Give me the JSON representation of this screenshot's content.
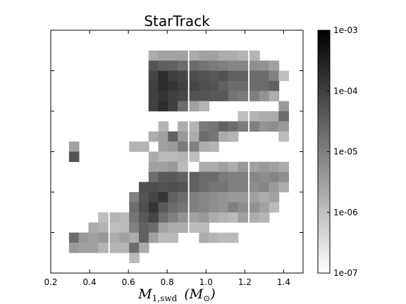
{
  "chart_data": {
    "type": "heatmap",
    "title": "StarTrack",
    "xlabel": "M1,swd (M☉)",
    "xlabel_parts": {
      "sym": "M",
      "sub": "1,swd",
      "unit_open": "(M",
      "unit_sub": "⊙",
      "unit_close": ")"
    },
    "ylabel": "",
    "xlim": [
      0.2,
      1.5
    ],
    "ylim": [
      0,
      6
    ],
    "x_ticks": [
      "0.2",
      "0.4",
      "0.6",
      "0.8",
      "1.0",
      "1.2",
      "1.4"
    ],
    "x_tick_values": [
      0.2,
      0.4,
      0.6,
      0.8,
      1.0,
      1.2,
      1.4
    ],
    "y_tick_values": [
      1,
      2,
      3,
      4,
      5
    ],
    "colorbar": {
      "scale": "log",
      "vmin": 1e-07,
      "vmax": 0.001,
      "ticks": [
        "1e-03",
        "1e-04",
        "1e-05",
        "1e-06",
        "1e-07"
      ],
      "tick_values": [
        0.001,
        0.0001,
        1e-05,
        1e-06,
        1e-07
      ],
      "colormap": "gray_r"
    },
    "bin_width": 0.052,
    "bin_height": 0.25,
    "bins": [
      [
        0.73,
        5.375,
        2e-06
      ],
      [
        0.78,
        5.375,
        3e-06
      ],
      [
        0.83,
        5.375,
        3e-06
      ],
      [
        0.88,
        5.375,
        3e-06
      ],
      [
        0.94,
        5.375,
        2e-06
      ],
      [
        0.99,
        5.375,
        3e-06
      ],
      [
        1.04,
        5.375,
        3e-06
      ],
      [
        1.09,
        5.375,
        2e-06
      ],
      [
        1.14,
        5.375,
        2e-06
      ],
      [
        1.19,
        5.375,
        1.5e-06
      ],
      [
        1.25,
        5.375,
        1.5e-06
      ],
      [
        0.73,
        5.125,
        5e-05
      ],
      [
        0.78,
        5.125,
        3e-05
      ],
      [
        0.83,
        5.125,
        3e-05
      ],
      [
        0.88,
        5.125,
        2e-05
      ],
      [
        0.94,
        5.125,
        2e-05
      ],
      [
        0.99,
        5.125,
        1.5e-05
      ],
      [
        1.04,
        5.125,
        1.2e-05
      ],
      [
        1.09,
        5.125,
        1e-05
      ],
      [
        1.14,
        5.125,
        8e-06
      ],
      [
        1.19,
        5.125,
        8e-06
      ],
      [
        1.25,
        5.125,
        6e-06
      ],
      [
        1.3,
        5.125,
        5e-06
      ],
      [
        1.35,
        5.125,
        3e-06
      ],
      [
        0.73,
        4.875,
        8e-05
      ],
      [
        0.78,
        4.875,
        0.0002
      ],
      [
        0.83,
        4.875,
        0.0001
      ],
      [
        0.88,
        4.875,
        8e-05
      ],
      [
        0.94,
        4.875,
        6e-05
      ],
      [
        0.99,
        4.875,
        5e-05
      ],
      [
        1.04,
        4.875,
        4e-05
      ],
      [
        1.09,
        4.875,
        5e-05
      ],
      [
        1.14,
        4.875,
        3e-05
      ],
      [
        1.19,
        4.875,
        3e-05
      ],
      [
        1.25,
        4.875,
        2e-05
      ],
      [
        1.3,
        4.875,
        2e-05
      ],
      [
        1.35,
        4.875,
        1e-05
      ],
      [
        1.4,
        4.875,
        1e-06
      ],
      [
        0.73,
        4.625,
        0.0001
      ],
      [
        0.78,
        4.625,
        0.0002
      ],
      [
        0.83,
        4.625,
        0.00015
      ],
      [
        0.88,
        4.625,
        0.0001
      ],
      [
        0.94,
        4.625,
        8e-05
      ],
      [
        0.99,
        4.625,
        6e-05
      ],
      [
        1.04,
        4.625,
        5e-05
      ],
      [
        1.09,
        4.625,
        3e-05
      ],
      [
        1.14,
        4.625,
        2e-05
      ],
      [
        1.19,
        4.625,
        2e-05
      ],
      [
        1.25,
        4.625,
        2e-05
      ],
      [
        1.3,
        4.625,
        2e-05
      ],
      [
        1.35,
        4.625,
        3e-05
      ],
      [
        0.73,
        4.375,
        0.0001
      ],
      [
        0.78,
        4.375,
        0.00015
      ],
      [
        0.83,
        4.375,
        0.0001
      ],
      [
        0.88,
        4.375,
        8e-05
      ],
      [
        0.94,
        4.375,
        5e-05
      ],
      [
        0.99,
        4.375,
        5e-05
      ],
      [
        1.04,
        4.375,
        4e-05
      ],
      [
        1.09,
        4.375,
        4e-05
      ],
      [
        1.14,
        4.375,
        1.5e-05
      ],
      [
        1.19,
        4.375,
        1.2e-05
      ],
      [
        1.25,
        4.375,
        1e-05
      ],
      [
        1.3,
        4.375,
        5e-06
      ],
      [
        1.35,
        4.375,
        2e-06
      ],
      [
        0.73,
        4.125,
        0.0001
      ],
      [
        0.78,
        4.125,
        0.0002
      ],
      [
        0.83,
        4.125,
        0.0001
      ],
      [
        0.88,
        4.125,
        2e-05
      ],
      [
        0.94,
        4.125,
        3e-06
      ],
      [
        0.99,
        4.125,
        1.5e-06
      ],
      [
        1.4,
        4.125,
        4e-06
      ],
      [
        1.19,
        3.875,
        1e-06
      ],
      [
        1.25,
        3.875,
        1.5e-06
      ],
      [
        1.3,
        3.875,
        2e-06
      ],
      [
        1.35,
        3.875,
        2e-06
      ],
      [
        1.4,
        3.875,
        2e-05
      ],
      [
        0.78,
        3.625,
        1.5e-06
      ],
      [
        0.88,
        3.625,
        2e-06
      ],
      [
        0.94,
        3.625,
        1.5e-06
      ],
      [
        0.99,
        3.625,
        1.2e-05
      ],
      [
        1.04,
        3.625,
        1.5e-05
      ],
      [
        1.09,
        3.625,
        3e-05
      ],
      [
        1.14,
        3.625,
        2e-05
      ],
      [
        1.19,
        3.625,
        1.2e-05
      ],
      [
        1.25,
        3.625,
        1e-05
      ],
      [
        1.3,
        3.625,
        5e-06
      ],
      [
        1.35,
        3.625,
        6e-06
      ],
      [
        1.4,
        3.625,
        4e-06
      ],
      [
        0.73,
        3.375,
        2e-06
      ],
      [
        0.78,
        3.375,
        3e-06
      ],
      [
        0.83,
        3.375,
        3e-05
      ],
      [
        0.88,
        3.375,
        4e-06
      ],
      [
        0.94,
        3.375,
        2e-06
      ],
      [
        0.99,
        3.375,
        2e-05
      ],
      [
        1.04,
        3.375,
        1.5e-05
      ],
      [
        1.09,
        3.375,
        2e-06
      ],
      [
        1.14,
        3.375,
        1.5e-06
      ],
      [
        1.4,
        3.375,
        1.2e-06
      ],
      [
        0.32,
        3.125,
        3e-06
      ],
      [
        0.63,
        3.125,
        1.5e-06
      ],
      [
        0.68,
        3.125,
        1.5e-06
      ],
      [
        0.78,
        3.125,
        3e-06
      ],
      [
        0.83,
        3.125,
        4e-06
      ],
      [
        0.88,
        3.125,
        1.2e-05
      ],
      [
        0.94,
        3.125,
        1e-05
      ],
      [
        0.99,
        3.125,
        2e-06
      ],
      [
        1.04,
        3.125,
        1.5e-06
      ],
      [
        0.32,
        2.875,
        5e-05
      ],
      [
        0.73,
        2.875,
        2e-06
      ],
      [
        0.78,
        2.875,
        1.2e-06
      ],
      [
        0.83,
        2.875,
        1.2e-06
      ],
      [
        0.88,
        2.875,
        1.5e-06
      ],
      [
        0.94,
        2.875,
        1e-06
      ],
      [
        0.73,
        2.625,
        3e-06
      ],
      [
        0.78,
        2.625,
        3e-06
      ],
      [
        0.83,
        2.625,
        4e-06
      ],
      [
        0.88,
        2.625,
        1.2e-06
      ],
      [
        0.99,
        2.625,
        2e-06
      ],
      [
        1.04,
        2.625,
        2e-06
      ],
      [
        1.09,
        2.625,
        3e-06
      ],
      [
        1.14,
        2.625,
        2e-06
      ],
      [
        1.19,
        2.625,
        4e-06
      ],
      [
        1.25,
        2.625,
        3e-06
      ],
      [
        1.3,
        2.625,
        4e-06
      ],
      [
        1.35,
        2.625,
        3e-06
      ],
      [
        1.4,
        2.625,
        2e-06
      ],
      [
        0.73,
        2.375,
        2e-05
      ],
      [
        0.78,
        2.375,
        4e-05
      ],
      [
        0.83,
        2.375,
        4e-05
      ],
      [
        0.88,
        2.375,
        3e-05
      ],
      [
        0.94,
        2.375,
        3e-05
      ],
      [
        0.99,
        2.375,
        2e-05
      ],
      [
        1.04,
        2.375,
        2e-05
      ],
      [
        1.09,
        2.375,
        1.2e-05
      ],
      [
        1.14,
        2.375,
        1e-05
      ],
      [
        1.19,
        2.375,
        1e-05
      ],
      [
        1.25,
        2.375,
        8e-06
      ],
      [
        1.3,
        2.375,
        6e-06
      ],
      [
        1.35,
        2.375,
        8e-06
      ],
      [
        1.4,
        2.375,
        6e-06
      ],
      [
        0.68,
        2.125,
        6e-05
      ],
      [
        0.73,
        2.125,
        6e-05
      ],
      [
        0.78,
        2.125,
        5e-05
      ],
      [
        0.83,
        2.125,
        6e-05
      ],
      [
        0.88,
        2.125,
        5e-05
      ],
      [
        0.94,
        2.125,
        3e-05
      ],
      [
        0.99,
        2.125,
        2e-05
      ],
      [
        1.04,
        2.125,
        1.5e-05
      ],
      [
        1.09,
        2.125,
        1.5e-05
      ],
      [
        1.14,
        2.125,
        1e-05
      ],
      [
        1.19,
        2.125,
        1e-05
      ],
      [
        1.25,
        2.125,
        6e-06
      ],
      [
        1.3,
        2.125,
        8e-06
      ],
      [
        1.35,
        2.125,
        4e-06
      ],
      [
        1.4,
        2.125,
        2e-06
      ],
      [
        0.63,
        1.875,
        1e-05
      ],
      [
        0.68,
        1.875,
        5e-05
      ],
      [
        0.73,
        1.875,
        8e-05
      ],
      [
        0.78,
        1.875,
        0.00015
      ],
      [
        0.83,
        1.875,
        3e-05
      ],
      [
        0.88,
        1.875,
        2e-05
      ],
      [
        0.94,
        1.875,
        1e-05
      ],
      [
        0.99,
        1.875,
        8e-06
      ],
      [
        1.04,
        1.875,
        6e-06
      ],
      [
        1.09,
        1.875,
        5e-06
      ],
      [
        1.14,
        1.875,
        4e-06
      ],
      [
        1.19,
        1.875,
        4e-06
      ],
      [
        1.25,
        1.875,
        3e-06
      ],
      [
        1.3,
        1.875,
        2e-06
      ],
      [
        1.35,
        1.875,
        3e-06
      ],
      [
        0.63,
        1.625,
        2e-05
      ],
      [
        0.68,
        1.625,
        6e-05
      ],
      [
        0.73,
        1.625,
        0.00015
      ],
      [
        0.78,
        1.625,
        4e-05
      ],
      [
        0.83,
        1.625,
        2e-05
      ],
      [
        0.88,
        1.625,
        1.5e-05
      ],
      [
        0.94,
        1.625,
        1e-05
      ],
      [
        0.99,
        1.625,
        8e-06
      ],
      [
        1.04,
        1.625,
        6e-06
      ],
      [
        1.09,
        1.625,
        5e-06
      ],
      [
        1.14,
        1.625,
        1e-05
      ],
      [
        1.19,
        1.625,
        6e-06
      ],
      [
        1.25,
        1.625,
        5e-06
      ],
      [
        1.3,
        1.625,
        3e-06
      ],
      [
        1.35,
        1.625,
        1.2e-06
      ],
      [
        0.47,
        1.375,
        1e-06
      ],
      [
        0.53,
        1.375,
        1.5e-06
      ],
      [
        0.58,
        1.375,
        1.2e-06
      ],
      [
        0.63,
        1.375,
        1.5e-05
      ],
      [
        0.68,
        1.375,
        4e-05
      ],
      [
        0.73,
        1.375,
        8e-05
      ],
      [
        0.78,
        1.375,
        2e-05
      ],
      [
        0.83,
        1.375,
        1e-05
      ],
      [
        0.88,
        1.375,
        5e-06
      ],
      [
        0.94,
        1.375,
        3e-06
      ],
      [
        0.99,
        1.375,
        4e-06
      ],
      [
        1.04,
        1.375,
        2e-06
      ],
      [
        1.09,
        1.375,
        1.5e-06
      ],
      [
        1.14,
        1.375,
        1.2e-06
      ],
      [
        1.19,
        1.375,
        3e-06
      ],
      [
        1.25,
        1.375,
        2e-06
      ],
      [
        1.3,
        1.375,
        1.5e-06
      ],
      [
        0.42,
        1.125,
        2e-06
      ],
      [
        0.47,
        1.125,
        1.5e-06
      ],
      [
        0.53,
        1.125,
        1e-06
      ],
      [
        0.58,
        1.125,
        1.2e-06
      ],
      [
        0.63,
        1.125,
        1e-05
      ],
      [
        0.68,
        1.125,
        3e-05
      ],
      [
        0.73,
        1.125,
        2e-05
      ],
      [
        0.78,
        1.125,
        3e-06
      ],
      [
        0.83,
        1.125,
        2e-06
      ],
      [
        0.88,
        1.125,
        2e-06
      ],
      [
        0.94,
        1.125,
        1.2e-06
      ],
      [
        0.99,
        1.125,
        1.2e-06
      ],
      [
        0.32,
        0.875,
        2e-05
      ],
      [
        0.37,
        0.875,
        4e-06
      ],
      [
        0.42,
        0.875,
        3e-06
      ],
      [
        0.47,
        0.875,
        4e-06
      ],
      [
        0.53,
        0.875,
        2e-06
      ],
      [
        0.58,
        0.875,
        3e-06
      ],
      [
        0.63,
        0.875,
        2e-06
      ],
      [
        0.68,
        0.875,
        3e-05
      ],
      [
        0.73,
        0.875,
        3e-06
      ],
      [
        0.78,
        0.875,
        1.2e-06
      ],
      [
        0.83,
        0.875,
        1.2e-06
      ],
      [
        0.99,
        0.875,
        2e-06
      ],
      [
        1.04,
        0.875,
        1.5e-06
      ],
      [
        1.09,
        0.875,
        1.2e-06
      ],
      [
        1.14,
        0.875,
        1.2e-06
      ],
      [
        0.32,
        0.625,
        4e-06
      ],
      [
        0.37,
        0.625,
        3e-06
      ],
      [
        0.42,
        0.625,
        3e-06
      ],
      [
        0.47,
        0.625,
        1.5e-06
      ],
      [
        0.53,
        0.625,
        1.5e-06
      ],
      [
        0.58,
        0.625,
        1.5e-06
      ],
      [
        0.63,
        0.625,
        2e-05
      ],
      [
        0.68,
        0.625,
        2e-06
      ],
      [
        0.63,
        0.375,
        1.2e-06
      ]
    ]
  }
}
